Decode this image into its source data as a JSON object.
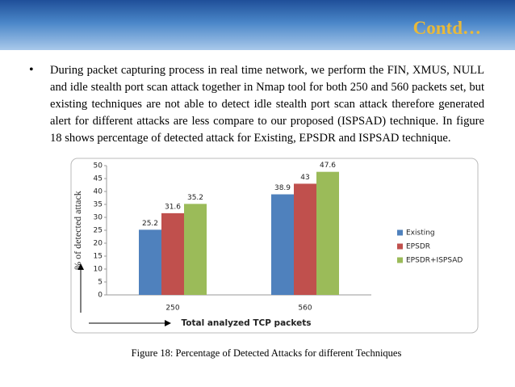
{
  "header": {
    "title": "Contd…"
  },
  "bullet": "During packet capturing  process in real time network, we perform the FIN, XMUS, NULL and idle stealth port scan attack together in Nmap tool for both 250 and 560 packets set, but existing techniques are not able to detect idle stealth port scan attack therefore generated alert for different attacks are less compare to our proposed (ISPSAD) technique. In figure 18 shows percentage of detected attack for Existing, EPSDR and ISPSAD technique.",
  "chart_data": {
    "type": "bar",
    "categories": [
      "250",
      "560"
    ],
    "series": [
      {
        "name": "Existing",
        "color": "#4f81bd",
        "values": [
          25.2,
          38.9
        ]
      },
      {
        "name": "EPSDR",
        "color": "#c0504d",
        "values": [
          31.6,
          43
        ]
      },
      {
        "name": "EPSDR+ISPSAD",
        "color": "#9bbb59",
        "values": [
          35.2,
          47.6
        ]
      }
    ],
    "ylim": [
      0,
      50
    ],
    "yticks": [
      0,
      5,
      10,
      15,
      20,
      25,
      30,
      35,
      40,
      45,
      50
    ],
    "ylabel": "% of detected attack",
    "xlabel": "Total analyzed TCP packets",
    "legend": "right",
    "grid": false
  },
  "caption": "Figure 18: Percentage of Detected Attacks for different Techniques"
}
